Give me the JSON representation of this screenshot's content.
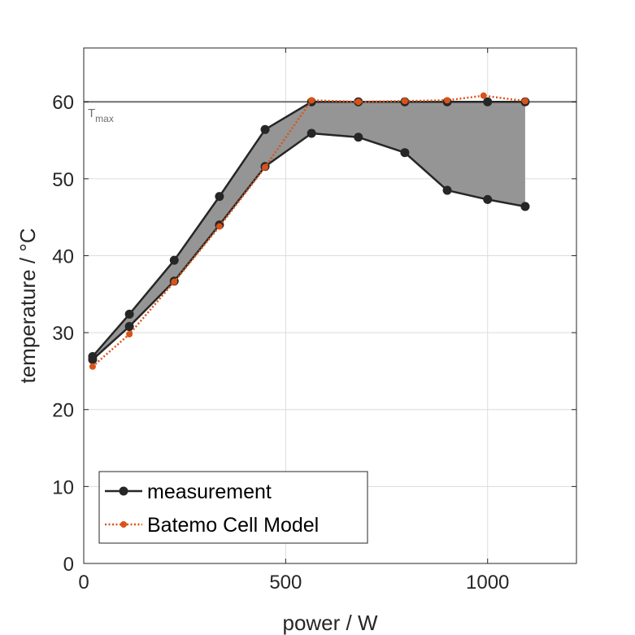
{
  "chart_data": {
    "type": "line",
    "title": "",
    "xlabel": "power / W",
    "ylabel": "temperature / °C",
    "xlim": [
      0,
      1220
    ],
    "ylim": [
      0,
      67
    ],
    "xticks": [
      0,
      500,
      1000
    ],
    "yticks": [
      0,
      10,
      20,
      30,
      40,
      50,
      60
    ],
    "grid": true,
    "legend_position": "bottom-left",
    "reference_line": {
      "y": 60,
      "label_main": "T",
      "label_sub": "max",
      "color": "#6e6e6e"
    },
    "band": {
      "description": "shaded range between measurement upper and lower curves",
      "color": "#959595",
      "upper": [
        [
          22,
          26.9
        ],
        [
          113,
          32.4
        ],
        [
          224,
          39.4
        ],
        [
          336,
          47.7
        ],
        [
          449,
          56.4
        ],
        [
          564,
          60.0
        ],
        [
          680,
          60.0
        ],
        [
          795,
          60.0
        ],
        [
          900,
          60.0
        ],
        [
          1000,
          60.0
        ],
        [
          1093,
          60.0
        ]
      ],
      "lower": [
        [
          22,
          26.5
        ],
        [
          113,
          30.8
        ],
        [
          224,
          36.7
        ],
        [
          336,
          44.0
        ],
        [
          449,
          51.6
        ],
        [
          564,
          55.9
        ],
        [
          680,
          55.4
        ],
        [
          795,
          53.4
        ],
        [
          900,
          48.5
        ],
        [
          1000,
          47.3
        ],
        [
          1093,
          46.4
        ]
      ]
    },
    "series": [
      {
        "name": "measurement",
        "color": "#262626",
        "style": "solid",
        "marker": "circle",
        "lines": [
          {
            "x": [
              22,
              113,
              224,
              336,
              449,
              564,
              680,
              795,
              900,
              1000,
              1093
            ],
            "y": [
              26.9,
              32.4,
              39.4,
              47.7,
              56.4,
              60.0,
              60.0,
              60.0,
              60.0,
              60.0,
              60.0
            ]
          },
          {
            "x": [
              22,
              113,
              224,
              336,
              449,
              564,
              680,
              795,
              900,
              1000,
              1093
            ],
            "y": [
              26.5,
              30.8,
              36.7,
              44.0,
              51.6,
              55.9,
              55.4,
              53.4,
              48.5,
              47.3,
              46.4
            ]
          }
        ]
      },
      {
        "name": "Batemo Cell Model",
        "color": "#d95319",
        "style": "dotted",
        "marker": "circle",
        "lines": [
          {
            "x": [
              22,
              113,
              224,
              336,
              449,
              564,
              680,
              795,
              900,
              990,
              1093
            ],
            "y": [
              25.6,
              29.8,
              36.6,
              43.8,
              51.5,
              60.2,
              60.0,
              60.1,
              60.2,
              60.8,
              60.1
            ]
          }
        ]
      }
    ]
  }
}
